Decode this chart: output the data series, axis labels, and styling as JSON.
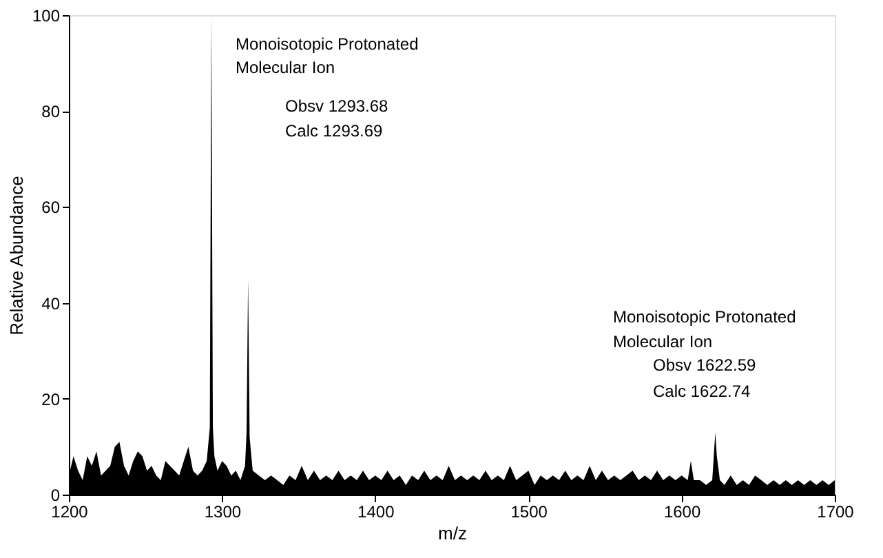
{
  "chart_data": {
    "type": "area",
    "xlabel": "m/z",
    "ylabel": "Relative Abundance",
    "xlim": [
      1200,
      1700
    ],
    "ylim": [
      0,
      100
    ],
    "xticks": [
      1200,
      1300,
      1400,
      1500,
      1600,
      1700
    ],
    "yticks": [
      0,
      20,
      40,
      60,
      80,
      100
    ],
    "grid": false,
    "x": [
      1200,
      1203,
      1206,
      1209,
      1212,
      1215,
      1218,
      1221,
      1224,
      1227,
      1230,
      1233,
      1236,
      1239,
      1242,
      1245,
      1248,
      1251,
      1254,
      1257,
      1260,
      1263,
      1266,
      1269,
      1272,
      1275,
      1278,
      1281,
      1284,
      1287,
      1290,
      1292,
      1293,
      1294,
      1295,
      1297,
      1300,
      1303,
      1306,
      1309,
      1312,
      1315,
      1316,
      1317,
      1318,
      1320,
      1324,
      1328,
      1332,
      1336,
      1340,
      1344,
      1348,
      1352,
      1356,
      1360,
      1364,
      1368,
      1372,
      1376,
      1380,
      1384,
      1388,
      1392,
      1396,
      1400,
      1404,
      1408,
      1412,
      1416,
      1420,
      1424,
      1428,
      1432,
      1436,
      1440,
      1444,
      1448,
      1452,
      1456,
      1460,
      1464,
      1468,
      1472,
      1476,
      1480,
      1484,
      1488,
      1492,
      1496,
      1500,
      1504,
      1508,
      1512,
      1516,
      1520,
      1524,
      1528,
      1532,
      1536,
      1540,
      1544,
      1548,
      1552,
      1556,
      1560,
      1564,
      1568,
      1572,
      1576,
      1580,
      1584,
      1588,
      1592,
      1596,
      1600,
      1604,
      1606,
      1608,
      1612,
      1616,
      1620,
      1622,
      1623,
      1625,
      1628,
      1632,
      1636,
      1640,
      1644,
      1648,
      1652,
      1656,
      1660,
      1664,
      1668,
      1672,
      1676,
      1680,
      1684,
      1688,
      1692,
      1696,
      1700
    ],
    "series": [
      {
        "color": "#000000",
        "values": [
          4,
          8,
          5,
          3,
          8,
          6,
          9,
          4,
          5,
          6,
          10,
          11,
          6,
          4,
          7,
          9,
          8,
          5,
          6,
          4,
          3,
          7,
          6,
          5,
          4,
          7,
          10,
          5,
          4,
          5,
          7,
          14,
          100,
          14,
          8,
          5,
          7,
          6,
          4,
          5,
          3,
          6,
          13,
          45,
          12,
          5,
          4,
          3,
          4,
          3,
          2,
          4,
          3,
          6,
          3,
          5,
          3,
          4,
          3,
          5,
          3,
          4,
          3,
          5,
          3,
          4,
          3,
          5,
          3,
          4,
          2,
          4,
          3,
          5,
          3,
          4,
          3,
          6,
          3,
          4,
          3,
          4,
          3,
          5,
          3,
          4,
          3,
          6,
          3,
          4,
          5,
          2,
          4,
          3,
          4,
          3,
          5,
          3,
          4,
          3,
          6,
          3,
          5,
          3,
          4,
          3,
          4,
          5,
          3,
          4,
          3,
          5,
          3,
          4,
          3,
          4,
          3,
          7,
          3,
          3,
          2,
          3,
          13,
          8,
          3,
          2,
          4,
          2,
          3,
          2,
          4,
          3,
          2,
          3,
          2,
          3,
          2,
          3,
          2,
          3,
          2,
          3,
          2,
          3
        ]
      }
    ],
    "annotations": [
      "Monoisotopic Protonated",
      "Molecular Ion",
      "Obsv 1293.68",
      "Calc  1293.69",
      "Monoisotopic Protonated",
      "Molecular Ion",
      "Obsv 1622.59",
      "Calc 1622.74"
    ]
  }
}
